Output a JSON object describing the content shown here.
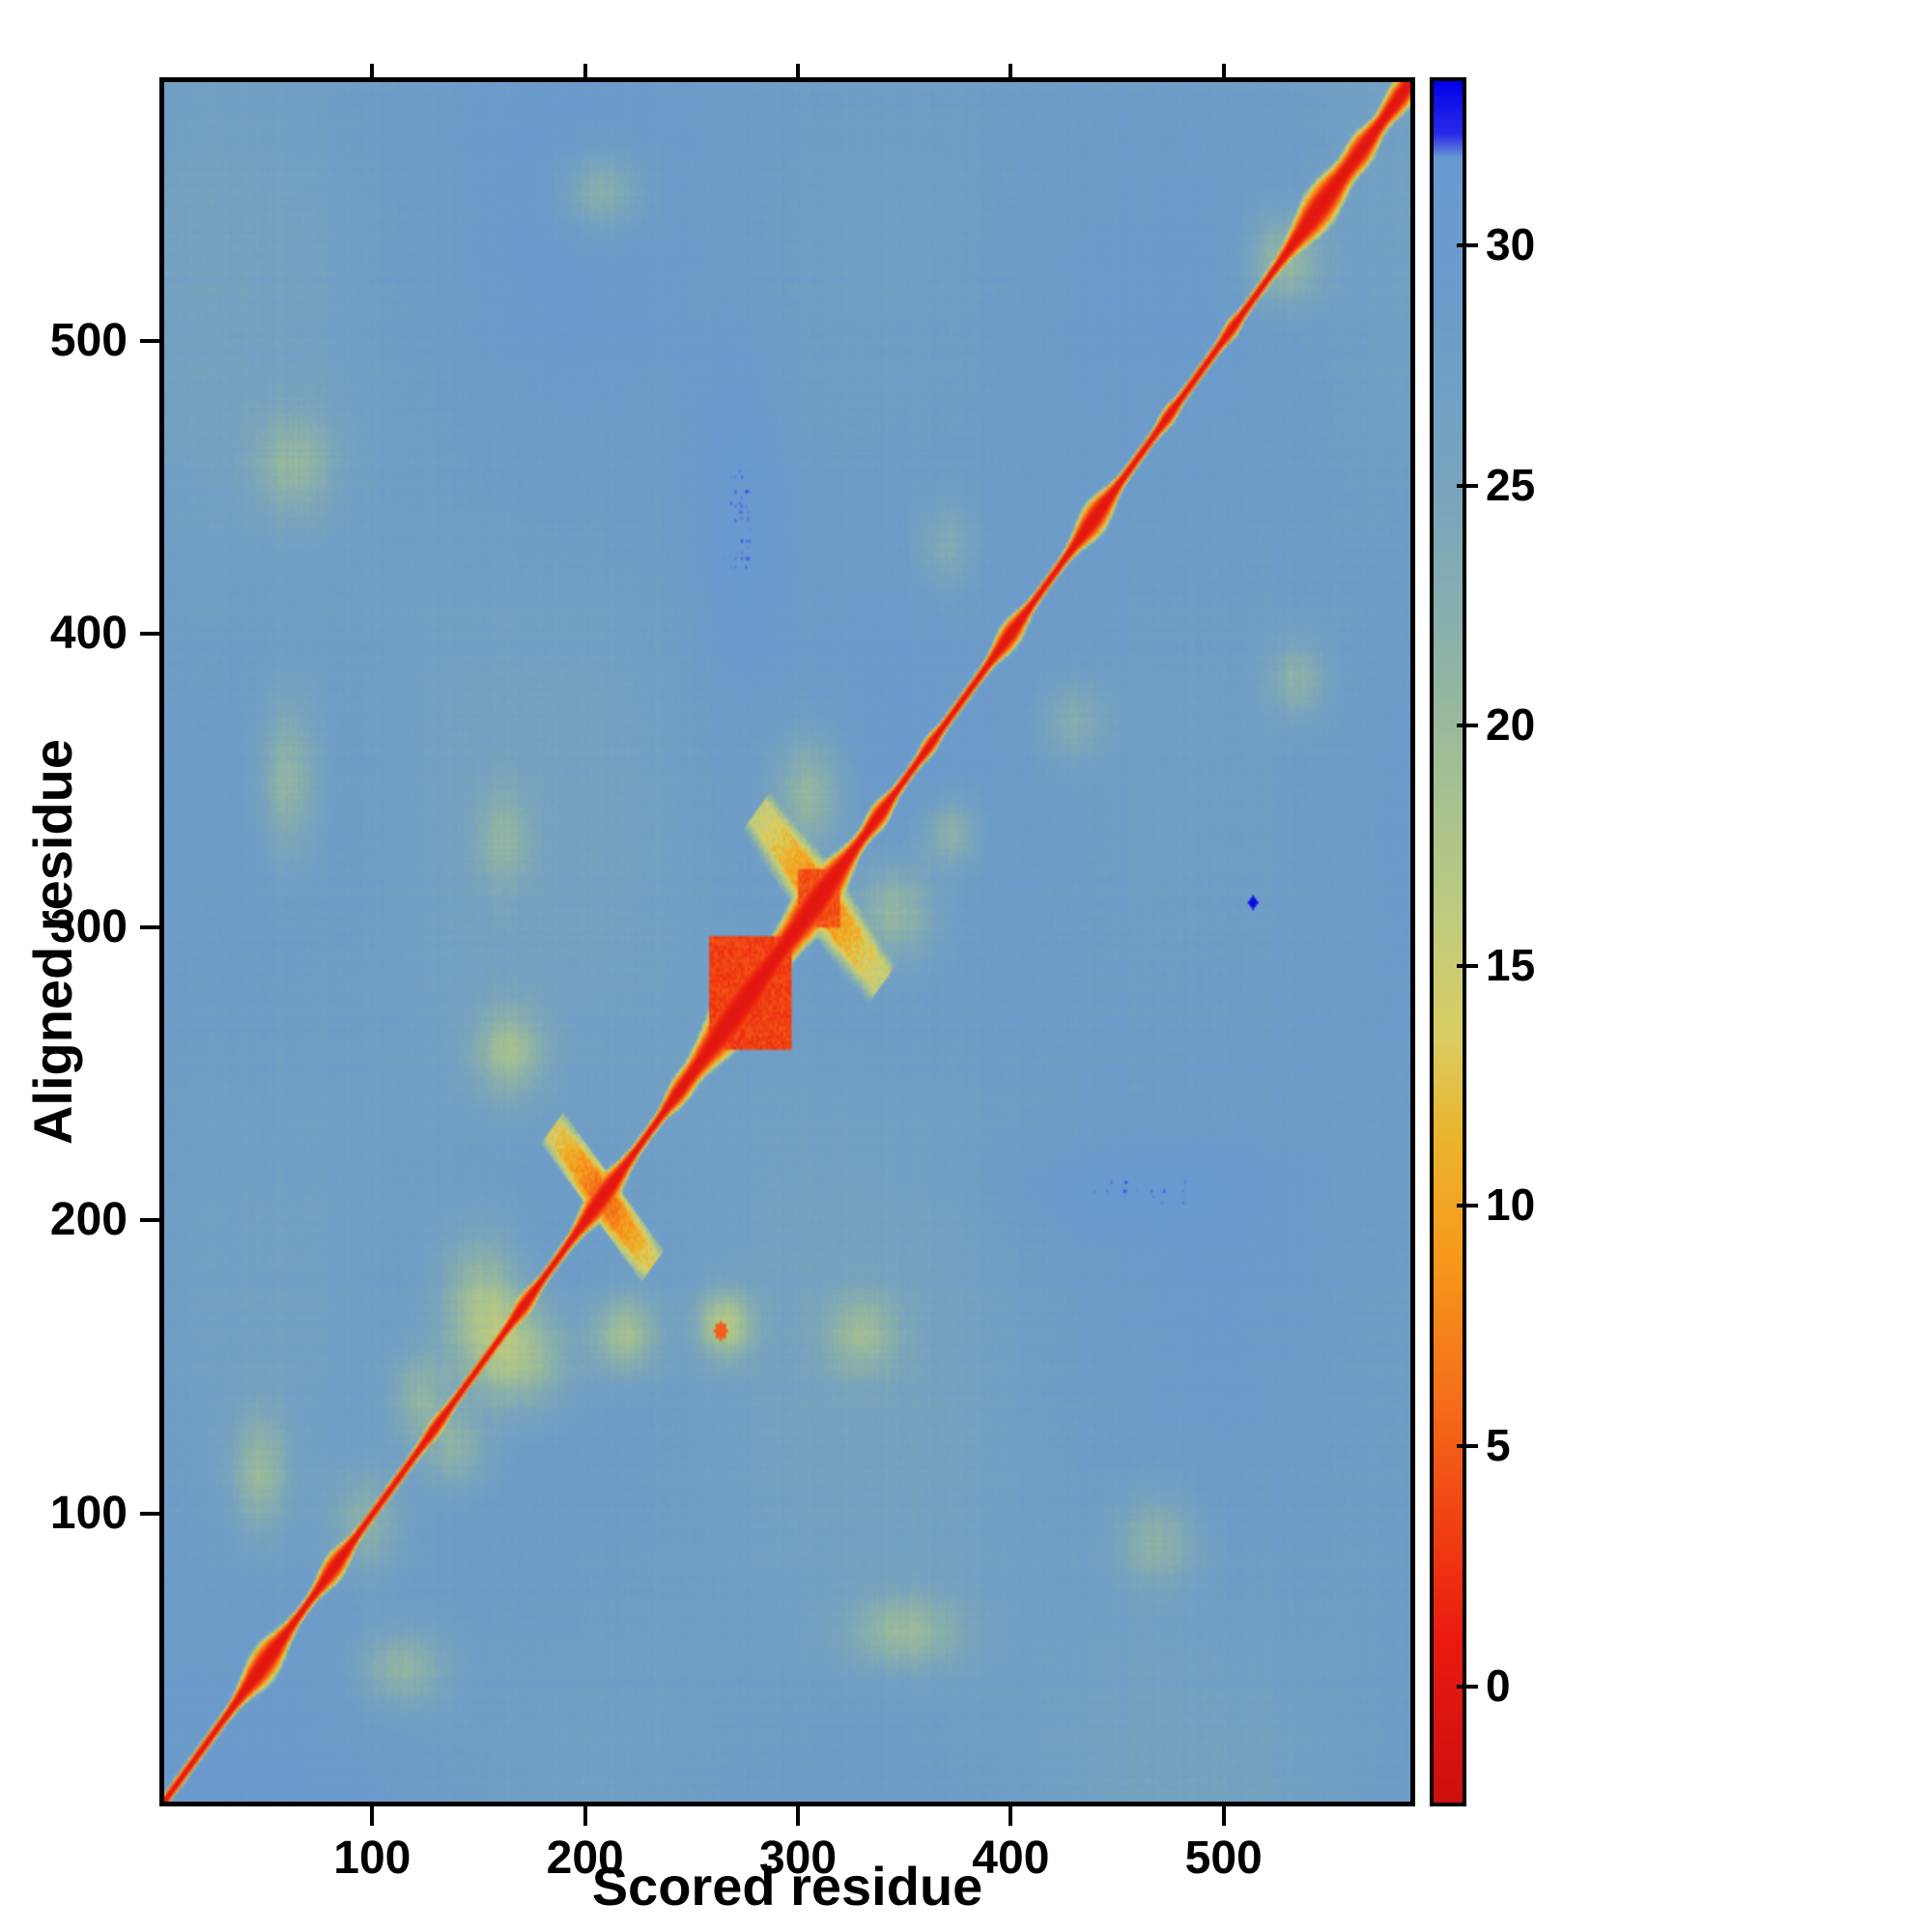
{
  "chart_data": {
    "type": "heatmap",
    "title": "",
    "xlabel": "Scored residue",
    "ylabel": "Aligned residue",
    "x_ticks": [
      100,
      200,
      300,
      400,
      500
    ],
    "y_ticks": [
      100,
      200,
      300,
      400,
      500
    ],
    "residue_range": [
      1,
      590
    ],
    "grid_size": 590,
    "legend_position": "right",
    "grid": false,
    "colorbar": {
      "ticks": [
        0,
        5,
        10,
        15,
        20,
        25,
        30
      ],
      "domain": [
        -2.5,
        33.5
      ],
      "stops": [
        {
          "v": -2.5,
          "color": "#cc0f0f"
        },
        {
          "v": 1.0,
          "color": "#ea1b10"
        },
        {
          "v": 3.0,
          "color": "#f03c12"
        },
        {
          "v": 6.0,
          "color": "#f4701a"
        },
        {
          "v": 9.0,
          "color": "#f79a1c"
        },
        {
          "v": 11.5,
          "color": "#eab52e"
        },
        {
          "v": 13.5,
          "color": "#d9cd62"
        },
        {
          "v": 16.0,
          "color": "#bfcb7e"
        },
        {
          "v": 19.0,
          "color": "#a2bf94"
        },
        {
          "v": 22.0,
          "color": "#8ab0ab"
        },
        {
          "v": 25.0,
          "color": "#78a4bd"
        },
        {
          "v": 28.5,
          "color": "#6d9cc9"
        },
        {
          "v": 31.9,
          "color": "#6899d2"
        },
        {
          "v": 32.4,
          "color": "#2a2ae8"
        },
        {
          "v": 33.5,
          "color": "#0202e8"
        }
      ]
    },
    "field": {
      "base_value": 27.8,
      "diagonal_value": 0,
      "diagonal_base_width": 3.5,
      "diagonal_exponent": 2.5,
      "noise_broad": 1.4,
      "noise_streak": 1.0,
      "noise_fine": 0.9,
      "blobs": [
        {
          "c": 47,
          "s": 7,
          "w": 8
        },
        {
          "c": 80,
          "s": 5,
          "w": 5
        },
        {
          "c": 128,
          "s": 4,
          "w": 2
        },
        {
          "c": 170,
          "s": 4,
          "w": 3
        },
        {
          "c": 207,
          "s": 7,
          "w": 7
        },
        {
          "c": 243,
          "s": 4,
          "w": 3
        },
        {
          "c": 272,
          "s": 14,
          "w": 14
        },
        {
          "c": 309,
          "s": 10,
          "w": 12
        },
        {
          "c": 338,
          "s": 4,
          "w": 4
        },
        {
          "c": 362,
          "s": 3,
          "w": 2
        },
        {
          "c": 400,
          "s": 5,
          "w": 5
        },
        {
          "c": 440,
          "s": 6,
          "w": 7
        },
        {
          "c": 475,
          "s": 3,
          "w": 2
        },
        {
          "c": 505,
          "s": 3,
          "w": 2
        },
        {
          "c": 547,
          "s": 9,
          "w": 10
        },
        {
          "c": 567,
          "s": 5,
          "w": 6
        },
        {
          "c": 585,
          "s": 6,
          "w": 6
        }
      ],
      "squares": [
        {
          "x0": 258,
          "y0": 258,
          "x1": 296,
          "y1": 296,
          "v": 2.0
        },
        {
          "x0": 300,
          "y0": 300,
          "x1": 319,
          "y1": 319,
          "v": 3.0
        }
      ],
      "crosses": [
        {
          "c": 207,
          "len": 24,
          "th": 5,
          "v": 5.0
        },
        {
          "c": 310,
          "len": 30,
          "th": 7,
          "v": 7.0
        }
      ],
      "patches": [
        {
          "x": 45,
          "y": 112,
          "rx": 14,
          "ry": 22,
          "a": 7
        },
        {
          "x": 112,
          "y": 45,
          "rx": 22,
          "ry": 14,
          "a": 7
        },
        {
          "x": 95,
          "y": 95,
          "rx": 18,
          "ry": 18,
          "a": 6
        },
        {
          "x": 138,
          "y": 120,
          "rx": 16,
          "ry": 14,
          "a": 6
        },
        {
          "x": 120,
          "y": 138,
          "rx": 14,
          "ry": 16,
          "a": 6
        },
        {
          "x": 168,
          "y": 152,
          "rx": 26,
          "ry": 20,
          "a": 9
        },
        {
          "x": 150,
          "y": 172,
          "rx": 20,
          "ry": 24,
          "a": 8
        },
        {
          "x": 218,
          "y": 160,
          "rx": 16,
          "ry": 14,
          "a": 9
        },
        {
          "x": 265,
          "y": 163,
          "rx": 14,
          "ry": 12,
          "a": 10
        },
        {
          "x": 163,
          "y": 257,
          "rx": 18,
          "ry": 16,
          "a": 8
        },
        {
          "x": 330,
          "y": 160,
          "rx": 18,
          "ry": 14,
          "a": 6
        },
        {
          "x": 160,
          "y": 330,
          "rx": 14,
          "ry": 18,
          "a": 5
        },
        {
          "x": 350,
          "y": 58,
          "rx": 28,
          "ry": 14,
          "a": 7
        },
        {
          "x": 58,
          "y": 350,
          "rx": 14,
          "ry": 28,
          "a": 7
        },
        {
          "x": 345,
          "y": 305,
          "rx": 22,
          "ry": 18,
          "a": 8
        },
        {
          "x": 305,
          "y": 345,
          "rx": 18,
          "ry": 22,
          "a": 8
        },
        {
          "x": 372,
          "y": 332,
          "rx": 14,
          "ry": 12,
          "a": 7
        },
        {
          "x": 430,
          "y": 370,
          "rx": 16,
          "ry": 14,
          "a": 5
        },
        {
          "x": 370,
          "y": 430,
          "rx": 14,
          "ry": 16,
          "a": 5
        },
        {
          "x": 530,
          "y": 528,
          "rx": 18,
          "ry": 16,
          "a": 8
        },
        {
          "x": 207,
          "y": 552,
          "rx": 20,
          "ry": 14,
          "a": 7
        },
        {
          "x": 536,
          "y": 385,
          "rx": 14,
          "ry": 14,
          "a": 6
        },
        {
          "x": 61,
          "y": 458,
          "rx": 20,
          "ry": 18,
          "a": 6
        },
        {
          "x": 470,
          "y": 89,
          "rx": 20,
          "ry": 16,
          "a": 6
        },
        {
          "x": 272,
          "y": 440,
          "rx": 22,
          "ry": 55,
          "a": -3
        },
        {
          "x": 455,
          "y": 208,
          "rx": 55,
          "ry": 14,
          "a": -2.5
        }
      ],
      "dots": [
        {
          "x": 263,
          "y": 161,
          "r": 3,
          "v": 5.0
        },
        {
          "x": 515,
          "y": 308,
          "r": 2,
          "v": 33.3
        }
      ]
    }
  }
}
